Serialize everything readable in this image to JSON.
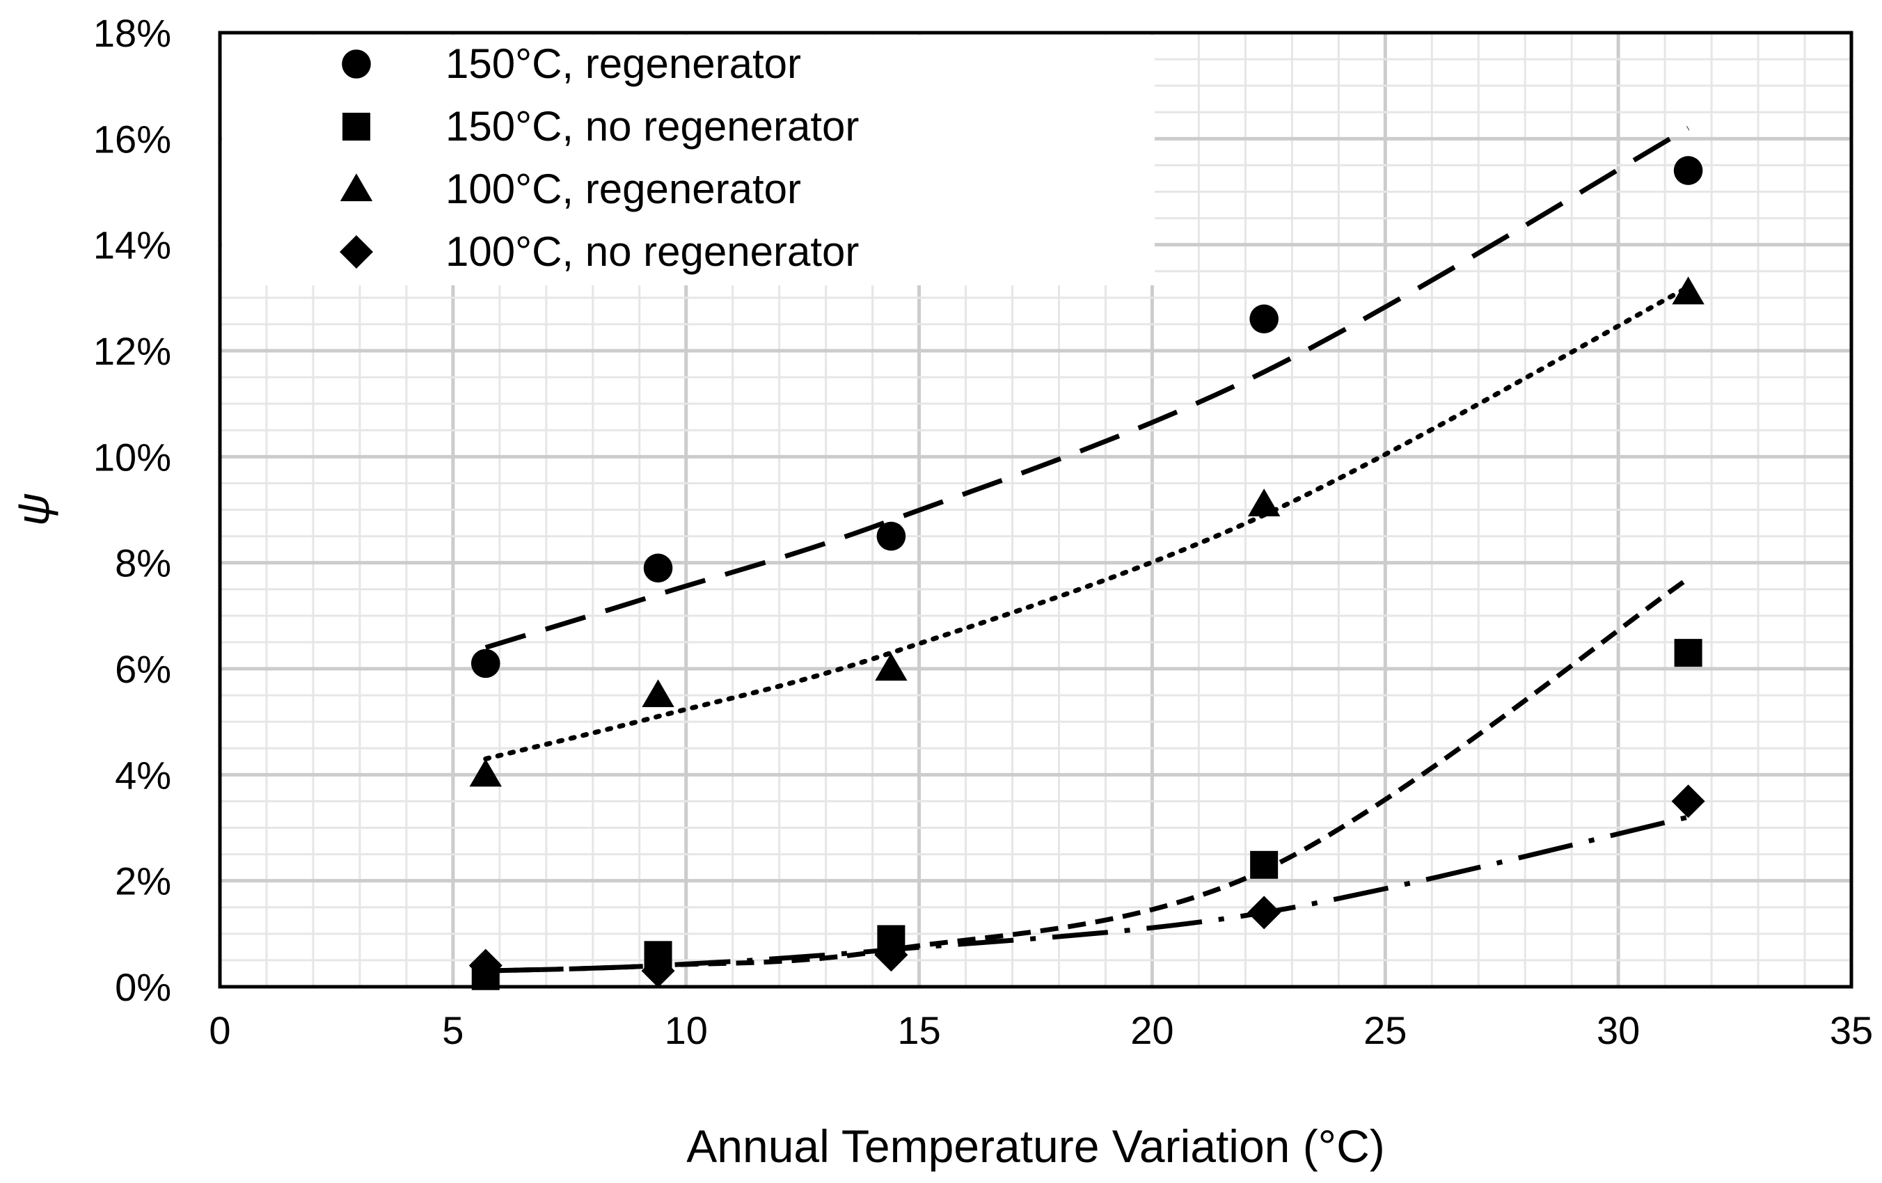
{
  "chart_data": {
    "type": "scatter",
    "title": "",
    "xlabel": "Annual Temperature Variation (°C)",
    "ylabel": "ψ",
    "xlim": [
      0,
      35
    ],
    "ylim": [
      0,
      0.18
    ],
    "x_ticks": [
      0,
      5,
      10,
      15,
      20,
      25,
      30,
      35
    ],
    "x_tick_labels": [
      "0",
      "5",
      "10",
      "15",
      "20",
      "25",
      "30",
      "35"
    ],
    "y_ticks": [
      0,
      0.02,
      0.04,
      0.06,
      0.08,
      0.1,
      0.12,
      0.14,
      0.16,
      0.18
    ],
    "y_tick_labels": [
      "0%",
      "2%",
      "4%",
      "6%",
      "8%",
      "10%",
      "12%",
      "14%",
      "16%",
      "18%"
    ],
    "grid": true,
    "legend_position": "top-left",
    "series": [
      {
        "name": "150°C, regenerator",
        "marker": "circle",
        "trendline": "dashed-long",
        "points": [
          [
            5.7,
            0.061
          ],
          [
            9.4,
            0.079
          ],
          [
            14.4,
            0.085
          ],
          [
            22.4,
            0.126
          ],
          [
            31.5,
            0.154
          ]
        ],
        "trend": [
          [
            5.7,
            0.064
          ],
          [
            9.4,
            0.074
          ],
          [
            14.4,
            0.088
          ],
          [
            22.4,
            0.116
          ],
          [
            31.5,
            0.162
          ]
        ]
      },
      {
        "name": "150°C, no regenerator",
        "marker": "square",
        "trendline": "dashed-short",
        "points": [
          [
            5.7,
            0.002
          ],
          [
            9.4,
            0.006
          ],
          [
            14.4,
            0.009
          ],
          [
            22.4,
            0.023
          ],
          [
            31.5,
            0.063
          ]
        ],
        "trend": [
          [
            5.7,
            0.003
          ],
          [
            9.4,
            0.004
          ],
          [
            14.4,
            0.007
          ],
          [
            22.4,
            0.022
          ],
          [
            31.5,
            0.077
          ]
        ]
      },
      {
        "name": "100°C, regenerator",
        "marker": "triangle",
        "trendline": "dotted",
        "points": [
          [
            5.7,
            0.04
          ],
          [
            9.4,
            0.055
          ],
          [
            14.4,
            0.06
          ],
          [
            22.4,
            0.091
          ],
          [
            31.5,
            0.131
          ]
        ],
        "trend": [
          [
            5.7,
            0.043
          ],
          [
            9.4,
            0.051
          ],
          [
            14.4,
            0.063
          ],
          [
            22.4,
            0.089
          ],
          [
            31.5,
            0.132
          ]
        ]
      },
      {
        "name": "100°C, no regenerator",
        "marker": "diamond",
        "trendline": "dash-dot",
        "points": [
          [
            5.7,
            0.004
          ],
          [
            9.4,
            0.003
          ],
          [
            14.4,
            0.006
          ],
          [
            22.4,
            0.014
          ],
          [
            31.5,
            0.035
          ]
        ],
        "trend": [
          [
            5.7,
            0.003
          ],
          [
            9.4,
            0.004
          ],
          [
            14.4,
            0.007
          ],
          [
            22.4,
            0.014
          ],
          [
            31.5,
            0.032
          ]
        ]
      }
    ]
  }
}
